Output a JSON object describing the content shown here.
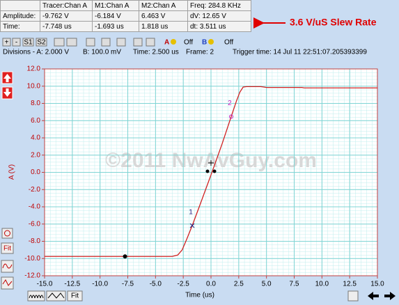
{
  "measurements": {
    "header": [
      "Tracer:Chan A",
      "M1:Chan A",
      "M2:Chan A",
      "Freq: 284.8 KHz"
    ],
    "rows": [
      [
        "Amplitude:",
        "-9.762 V",
        "-6.184 V",
        "6.463 V",
        "dV: 12.65 V"
      ],
      [
        "Time:",
        "-7.748 us",
        "-1.693 us",
        "1.818 us",
        "dt:  3.511 us"
      ]
    ]
  },
  "annotation": "3.6 V/uS Slew Rate",
  "toolbar": {
    "buttons": [
      "+",
      "-",
      "S1",
      "S2"
    ],
    "channel_a": "A",
    "channel_a_state": "Off",
    "channel_b": "B",
    "channel_b_state": "Off"
  },
  "status": {
    "divisions": "Divisions -  A: 2.000 V",
    "b_scale": "B: 100.0 mV",
    "time": "Time: 2.500 us",
    "frame": "Frame: 2",
    "trigger": "Trigger time: 14 Jul 11 22:51:07.205393399"
  },
  "side_buttons": {
    "fit": "Fit"
  },
  "bottom_buttons": {
    "fit": "Fit"
  },
  "chart_data": {
    "type": "line",
    "x_label": "Time (us)",
    "y_label": "A (V)",
    "watermark": "©2011 NwAvGuy.com",
    "color": "#d02020",
    "grid": true,
    "xlim": [
      -15,
      15
    ],
    "ylim": [
      -12,
      12
    ],
    "xticks": [
      {
        "value": -15,
        "label": "-15.0"
      },
      {
        "value": -12.5,
        "label": "-12.5"
      },
      {
        "value": -10,
        "label": "-10.0"
      },
      {
        "value": -7.5,
        "label": "-7.5"
      },
      {
        "value": -5,
        "label": "-5.0"
      },
      {
        "value": -2.5,
        "label": "-2.5"
      },
      {
        "value": 0,
        "label": "0.0"
      },
      {
        "value": 2.5,
        "label": "2.5"
      },
      {
        "value": 5,
        "label": "5.0"
      },
      {
        "value": 7.5,
        "label": "7.5"
      },
      {
        "value": 10,
        "label": "10.0"
      },
      {
        "value": 12.5,
        "label": "12.5"
      },
      {
        "value": 15,
        "label": "15.0"
      }
    ],
    "yticks": [
      {
        "value": 12,
        "label": "12.0"
      },
      {
        "value": 10,
        "label": "10.0"
      },
      {
        "value": 8,
        "label": "8.0"
      },
      {
        "value": 6,
        "label": "6.0"
      },
      {
        "value": 4,
        "label": "4.0"
      },
      {
        "value": 2,
        "label": "2.0"
      },
      {
        "value": 0,
        "label": "0.0"
      },
      {
        "value": -2,
        "label": "-2.0"
      },
      {
        "value": -4,
        "label": "-4.0"
      },
      {
        "value": -6,
        "label": "-6.0"
      },
      {
        "value": -8,
        "label": "-8.0"
      },
      {
        "value": -10,
        "label": "-10.0"
      },
      {
        "value": -12,
        "label": "-12.0"
      }
    ],
    "x": [
      -15,
      -3.5,
      -3.0,
      -2.6,
      -2.2,
      -1.693,
      -1.0,
      0,
      1.0,
      1.818,
      2.3,
      2.6,
      2.9,
      3.2,
      4.5,
      5.0,
      8.2,
      8.4,
      15
    ],
    "values": [
      -9.76,
      -9.76,
      -9.6,
      -9.0,
      -7.8,
      -6.184,
      -3.8,
      -0.3,
      3.3,
      6.463,
      8.3,
      9.3,
      9.9,
      9.95,
      9.95,
      9.85,
      9.85,
      9.8,
      9.8
    ],
    "markers": [
      {
        "label": "1",
        "x": -1.693,
        "y": -6.184,
        "color": "#202080"
      },
      {
        "label": "2",
        "x": 1.818,
        "y": 6.463,
        "color": "#c020c0"
      }
    ],
    "tracer": {
      "x": -7.748,
      "y": -9.762
    }
  }
}
